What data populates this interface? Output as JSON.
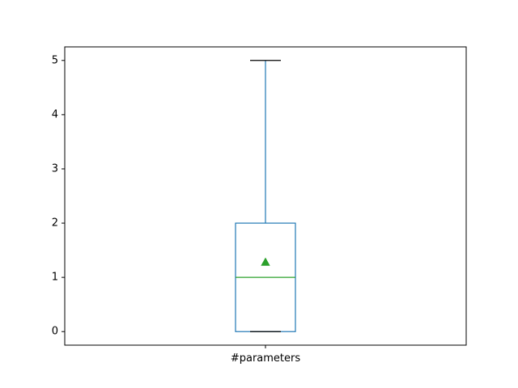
{
  "chart_data": {
    "type": "box",
    "categories": [
      "#parameters"
    ],
    "boxes": [
      {
        "label": "#parameters",
        "whisker_low": 0,
        "q1": 0,
        "median": 1,
        "q3": 2,
        "whisker_high": 5,
        "mean": 1.28
      }
    ],
    "ylim": [
      -0.25,
      5.25
    ],
    "yticks": [
      0,
      1,
      2,
      3,
      4,
      5
    ],
    "title": "",
    "xlabel": "",
    "ylabel": "",
    "grid": false,
    "colors": {
      "box": "#1f77b4",
      "median": "#2ca02c",
      "mean": "#2ca02c",
      "caps": "#000000",
      "axes": "#000000"
    }
  }
}
